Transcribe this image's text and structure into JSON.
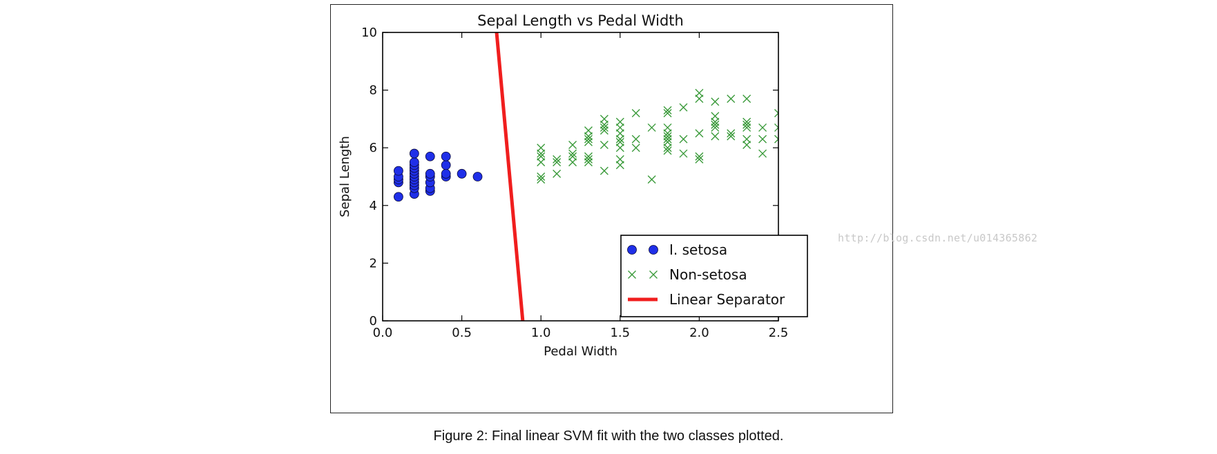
{
  "caption": "Figure 2: Final linear SVM fit with the two classes plotted.",
  "watermark": "http://blog.csdn.net/u014365862",
  "chart_data": {
    "type": "scatter",
    "title": "Sepal Length vs Pedal Width",
    "xlabel": "Pedal Width",
    "ylabel": "Sepal Length",
    "xlim": [
      0.0,
      2.5
    ],
    "ylim": [
      0,
      10
    ],
    "xticks": [
      "0.0",
      "0.5",
      "1.0",
      "1.5",
      "2.0",
      "2.5"
    ],
    "yticks": [
      "0",
      "2",
      "4",
      "6",
      "8",
      "10"
    ],
    "grid": false,
    "legend_position": "bottom-right",
    "colors": {
      "setosa": "#1f2fe8",
      "non_setosa": "#3a9a3a",
      "separator": "#f01e1e"
    },
    "series": [
      {
        "name": "I. setosa",
        "marker": "circle",
        "points": [
          [
            0.1,
            4.3
          ],
          [
            0.1,
            4.8
          ],
          [
            0.1,
            4.9
          ],
          [
            0.1,
            5.0
          ],
          [
            0.1,
            5.2
          ],
          [
            0.2,
            4.4
          ],
          [
            0.2,
            4.6
          ],
          [
            0.2,
            4.7
          ],
          [
            0.2,
            4.8
          ],
          [
            0.2,
            4.9
          ],
          [
            0.2,
            5.0
          ],
          [
            0.2,
            5.1
          ],
          [
            0.2,
            5.2
          ],
          [
            0.2,
            5.3
          ],
          [
            0.2,
            5.4
          ],
          [
            0.2,
            5.5
          ],
          [
            0.2,
            5.8
          ],
          [
            0.3,
            4.5
          ],
          [
            0.3,
            4.6
          ],
          [
            0.3,
            4.8
          ],
          [
            0.3,
            5.0
          ],
          [
            0.3,
            5.1
          ],
          [
            0.3,
            5.7
          ],
          [
            0.4,
            5.0
          ],
          [
            0.4,
            5.1
          ],
          [
            0.4,
            5.4
          ],
          [
            0.4,
            5.7
          ],
          [
            0.5,
            5.1
          ],
          [
            0.6,
            5.0
          ]
        ]
      },
      {
        "name": "Non-setosa",
        "marker": "x",
        "points": [
          [
            1.0,
            4.9
          ],
          [
            1.0,
            5.0
          ],
          [
            1.0,
            5.5
          ],
          [
            1.0,
            5.7
          ],
          [
            1.0,
            5.8
          ],
          [
            1.0,
            6.0
          ],
          [
            1.1,
            5.1
          ],
          [
            1.1,
            5.5
          ],
          [
            1.1,
            5.6
          ],
          [
            1.2,
            5.5
          ],
          [
            1.2,
            5.7
          ],
          [
            1.2,
            5.8
          ],
          [
            1.2,
            6.1
          ],
          [
            1.3,
            5.5
          ],
          [
            1.3,
            5.6
          ],
          [
            1.3,
            5.7
          ],
          [
            1.3,
            6.2
          ],
          [
            1.3,
            6.3
          ],
          [
            1.3,
            6.4
          ],
          [
            1.3,
            6.6
          ],
          [
            1.4,
            5.2
          ],
          [
            1.4,
            6.1
          ],
          [
            1.4,
            6.6
          ],
          [
            1.4,
            6.7
          ],
          [
            1.4,
            6.8
          ],
          [
            1.4,
            7.0
          ],
          [
            1.5,
            5.4
          ],
          [
            1.5,
            5.6
          ],
          [
            1.5,
            6.0
          ],
          [
            1.5,
            6.2
          ],
          [
            1.5,
            6.3
          ],
          [
            1.5,
            6.5
          ],
          [
            1.5,
            6.7
          ],
          [
            1.5,
            6.9
          ],
          [
            1.6,
            6.0
          ],
          [
            1.6,
            6.3
          ],
          [
            1.6,
            7.2
          ],
          [
            1.7,
            4.9
          ],
          [
            1.7,
            6.7
          ],
          [
            1.8,
            5.9
          ],
          [
            1.8,
            6.0
          ],
          [
            1.8,
            6.2
          ],
          [
            1.8,
            6.3
          ],
          [
            1.8,
            6.4
          ],
          [
            1.8,
            6.5
          ],
          [
            1.8,
            6.7
          ],
          [
            1.8,
            7.2
          ],
          [
            1.8,
            7.3
          ],
          [
            1.9,
            5.8
          ],
          [
            1.9,
            6.3
          ],
          [
            1.9,
            7.4
          ],
          [
            2.0,
            5.6
          ],
          [
            2.0,
            5.7
          ],
          [
            2.0,
            6.5
          ],
          [
            2.0,
            7.7
          ],
          [
            2.0,
            7.9
          ],
          [
            2.1,
            6.4
          ],
          [
            2.1,
            6.7
          ],
          [
            2.1,
            6.8
          ],
          [
            2.1,
            6.9
          ],
          [
            2.1,
            7.1
          ],
          [
            2.1,
            7.6
          ],
          [
            2.2,
            6.4
          ],
          [
            2.2,
            6.5
          ],
          [
            2.2,
            7.7
          ],
          [
            2.3,
            6.1
          ],
          [
            2.3,
            6.3
          ],
          [
            2.3,
            6.7
          ],
          [
            2.3,
            6.8
          ],
          [
            2.3,
            6.9
          ],
          [
            2.3,
            7.7
          ],
          [
            2.4,
            5.8
          ],
          [
            2.4,
            6.3
          ],
          [
            2.4,
            6.7
          ],
          [
            2.5,
            6.3
          ],
          [
            2.5,
            6.7
          ],
          [
            2.5,
            7.2
          ]
        ]
      },
      {
        "name": "Linear Separator",
        "marker": "line",
        "points": [
          [
            0.72,
            10.0
          ],
          [
            0.885,
            0.0
          ]
        ]
      }
    ]
  }
}
